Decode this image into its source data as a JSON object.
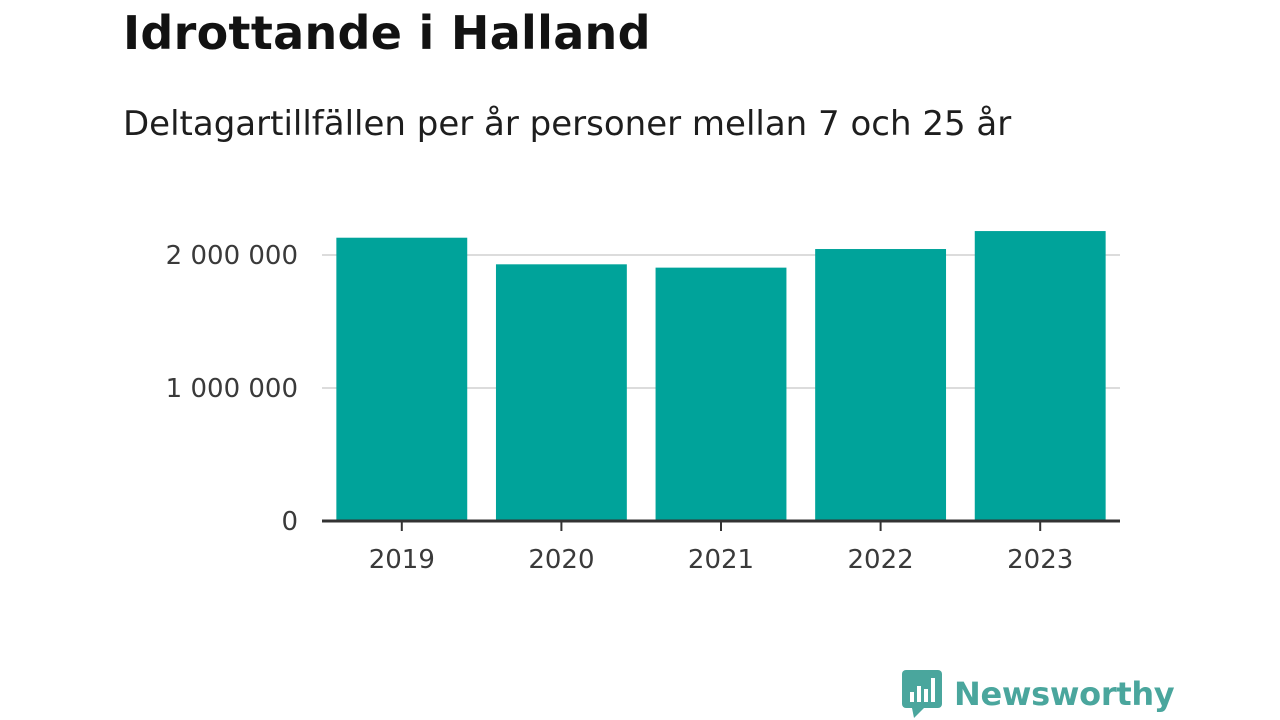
{
  "chart_data": {
    "type": "bar",
    "title": "Idrottande i Halland",
    "subtitle": "Deltagartillfällen per år personer mellan 7 och 25 år",
    "categories": [
      "2019",
      "2020",
      "2021",
      "2022",
      "2023"
    ],
    "values": [
      2130000,
      1930000,
      1905000,
      2045000,
      2180000
    ],
    "ylim": [
      0,
      2000000
    ],
    "yticks": [
      0,
      1000000,
      2000000
    ],
    "ytick_labels": [
      "0",
      "1 000 000",
      "2 000 000"
    ],
    "xlabel": "",
    "ylabel": "",
    "grid": true,
    "legend": "none",
    "bar_color": "#00a39a",
    "grid_color": "#dcdcdc",
    "axis_color": "#333333"
  },
  "brand": {
    "name": "Newsworthy",
    "color": "#4aa69d",
    "icon": "bar-chart-speech-bubble-icon"
  }
}
